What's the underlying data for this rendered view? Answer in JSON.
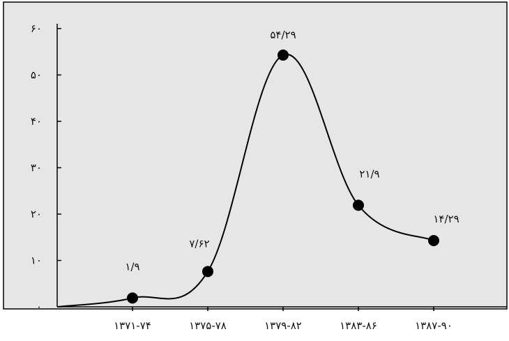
{
  "chart_data": {
    "type": "line",
    "categories": [
      "۱۳۷۱-۷۴",
      "۱۳۷۵-۷۸",
      "۱۳۷۹-۸۲",
      "۱۳۸۳-۸۶",
      "۱۳۸۷-۹۰"
    ],
    "values": [
      1.9,
      7.62,
      54.29,
      21.9,
      14.29
    ],
    "data_labels": [
      "۱/۹",
      "۷/۶۲",
      "۵۴/۲۹",
      "۲۱/۹",
      "۱۴/۲۹"
    ],
    "ylim": [
      0,
      60
    ],
    "yticks": [
      0,
      10,
      20,
      30,
      40,
      50,
      60
    ],
    "ytick_labels": [
      "۰",
      "۱۰",
      "۲۰",
      "۳۰",
      "۴۰",
      "۵۰",
      "۶۰"
    ],
    "title": "",
    "xlabel": "",
    "ylabel": "",
    "grid": false,
    "line_color": "#000000",
    "marker_color": "#000000",
    "plot_background": "#e6e6e6"
  }
}
